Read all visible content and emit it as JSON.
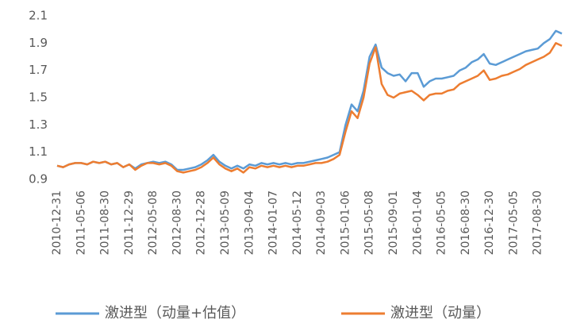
{
  "chart_data": {
    "type": "line",
    "categories": [
      "2010-12-31",
      null,
      null,
      null,
      "2011-05-06",
      null,
      null,
      null,
      "2011-08-30",
      null,
      null,
      null,
      "2011-12-29",
      null,
      null,
      null,
      "2012-05-08",
      null,
      null,
      null,
      "2012-08-30",
      null,
      null,
      null,
      "2012-12-28",
      null,
      null,
      null,
      "2013-05-09",
      null,
      null,
      null,
      "2013-09-04",
      null,
      null,
      null,
      "2014-01-07",
      null,
      null,
      null,
      "2014-05-12",
      null,
      null,
      null,
      "2014-09-03",
      null,
      null,
      null,
      "2015-01-06",
      null,
      null,
      null,
      "2015-05-08",
      null,
      null,
      null,
      "2015-09-01",
      null,
      null,
      null,
      "2016-01-04",
      null,
      null,
      null,
      "2016-05-05",
      null,
      null,
      null,
      "2016-08-30",
      null,
      null,
      null,
      "2016-12-30",
      null,
      null,
      null,
      "2017-05-05",
      null,
      null,
      null,
      "2017-08-30",
      null,
      null,
      null,
      null
    ],
    "series": [
      {
        "name": "激进型（动量+估值）",
        "color": "#5b9bd5",
        "values": [
          1.0,
          0.99,
          1.01,
          1.02,
          1.02,
          1.01,
          1.03,
          1.02,
          1.03,
          1.01,
          1.02,
          0.99,
          1.01,
          0.98,
          1.01,
          1.02,
          1.03,
          1.02,
          1.03,
          1.01,
          0.97,
          0.97,
          0.98,
          0.99,
          1.01,
          1.04,
          1.08,
          1.03,
          1.0,
          0.98,
          1.0,
          0.98,
          1.01,
          1.0,
          1.02,
          1.01,
          1.02,
          1.01,
          1.02,
          1.01,
          1.02,
          1.02,
          1.03,
          1.04,
          1.05,
          1.06,
          1.08,
          1.1,
          1.3,
          1.45,
          1.4,
          1.55,
          1.8,
          1.89,
          1.72,
          1.68,
          1.66,
          1.67,
          1.62,
          1.68,
          1.68,
          1.58,
          1.62,
          1.64,
          1.64,
          1.65,
          1.66,
          1.7,
          1.72,
          1.76,
          1.78,
          1.82,
          1.75,
          1.74,
          1.76,
          1.78,
          1.8,
          1.82,
          1.84,
          1.85,
          1.86,
          1.9,
          1.93,
          1.99,
          1.97
        ]
      },
      {
        "name": "激进型（动量）",
        "color": "#ed7d31",
        "values": [
          1.0,
          0.99,
          1.01,
          1.02,
          1.02,
          1.01,
          1.03,
          1.02,
          1.03,
          1.01,
          1.02,
          0.99,
          1.01,
          0.97,
          1.0,
          1.02,
          1.02,
          1.01,
          1.02,
          1.0,
          0.96,
          0.95,
          0.96,
          0.97,
          0.99,
          1.02,
          1.06,
          1.01,
          0.98,
          0.96,
          0.98,
          0.95,
          0.99,
          0.98,
          1.0,
          0.99,
          1.0,
          0.99,
          1.0,
          0.99,
          1.0,
          1.0,
          1.01,
          1.02,
          1.02,
          1.03,
          1.05,
          1.08,
          1.25,
          1.4,
          1.35,
          1.5,
          1.75,
          1.87,
          1.6,
          1.52,
          1.5,
          1.53,
          1.54,
          1.55,
          1.52,
          1.48,
          1.52,
          1.53,
          1.53,
          1.55,
          1.56,
          1.6,
          1.62,
          1.64,
          1.66,
          1.7,
          1.63,
          1.64,
          1.66,
          1.67,
          1.69,
          1.71,
          1.74,
          1.76,
          1.78,
          1.8,
          1.83,
          1.9,
          1.88
        ]
      }
    ],
    "ylim": [
      0.9,
      2.1
    ],
    "yticks": [
      0.9,
      1.1,
      1.3,
      1.5,
      1.7,
      1.9,
      2.1
    ],
    "grid": false,
    "legend": "bottom"
  }
}
